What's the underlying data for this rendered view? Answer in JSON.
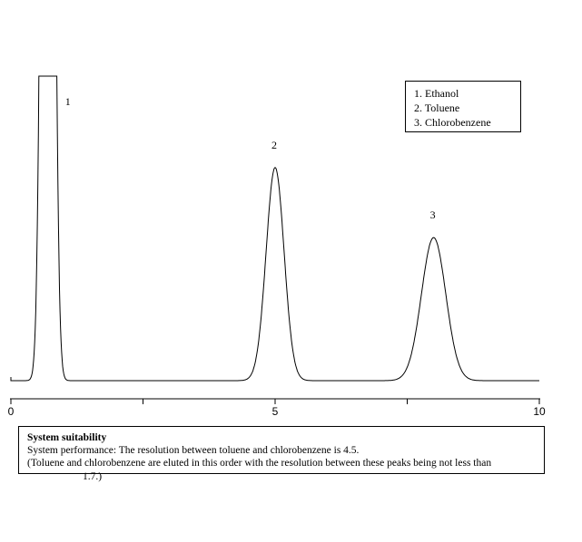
{
  "chart_data": {
    "type": "line",
    "title": "",
    "xlabel": "",
    "ylabel": "",
    "xlim": [
      0,
      10
    ],
    "ylim": [
      0,
      100
    ],
    "x_ticks": [
      {
        "value": 0,
        "label": "0"
      },
      {
        "value": 2.5,
        "label": ""
      },
      {
        "value": 5,
        "label": "5"
      },
      {
        "value": 7.5,
        "label": ""
      },
      {
        "value": 10,
        "label": "10"
      }
    ],
    "baseline": 0,
    "peaks": [
      {
        "label": "1",
        "center": 0.7,
        "height": 100,
        "width": 0.09,
        "truncated": true
      },
      {
        "label": "2",
        "center": 5.0,
        "height": 70,
        "width": 0.17
      },
      {
        "label": "3",
        "center": 8.0,
        "height": 47,
        "width": 0.23
      }
    ],
    "legend": {
      "position": "top-right",
      "entries": [
        "1. Ethanol",
        "2. Toluene",
        "3. Chlorobenzene"
      ]
    },
    "grid": false
  },
  "suitability": {
    "title": "System suitability",
    "line1": "System performance: The resolution between toluene and chlorobenzene is 4.5.",
    "line2": "(Toluene and chlorobenzene are eluted in this order with the resolution between these peaks being not less than",
    "line3": "1.7.)"
  }
}
